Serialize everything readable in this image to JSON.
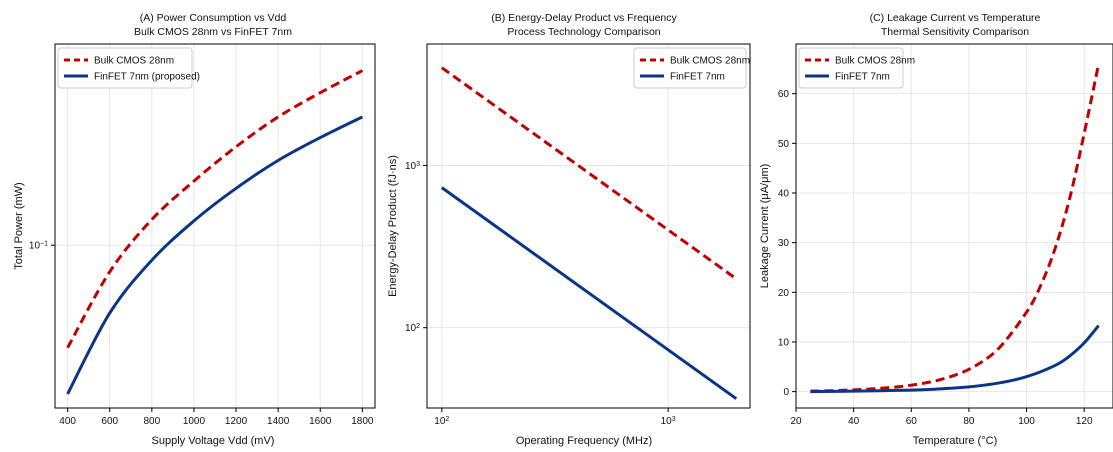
{
  "colors": {
    "bulk": "#c00000",
    "finfet": "#0b3585",
    "grid": "#e3e3e3"
  },
  "chart_data": [
    {
      "type": "line",
      "title": "(A) Power Consumption vs Vdd",
      "subtitle": "Bulk CMOS 28nm vs FinFET 7nm",
      "xlabel": "Supply Voltage Vdd (mV)",
      "ylabel": "Total Power (mW)",
      "xscale": "linear",
      "yscale": "log",
      "xlim": [
        340,
        1860
      ],
      "ylim": [
        0.0172,
        0.88
      ],
      "xticks": [
        {
          "v": 400,
          "label": "400"
        },
        {
          "v": 600,
          "label": "600"
        },
        {
          "v": 800,
          "label": "800"
        },
        {
          "v": 1000,
          "label": "1000"
        },
        {
          "v": 1200,
          "label": "1200"
        },
        {
          "v": 1400,
          "label": "1400"
        },
        {
          "v": 1600,
          "label": "1600"
        },
        {
          "v": 1800,
          "label": "1800"
        }
      ],
      "yticks": [
        {
          "v": 0.1,
          "base": "10",
          "exp": "−1"
        }
      ],
      "grid": true,
      "legend": "top-left",
      "series": [
        {
          "name": "Bulk CMOS 28nm",
          "color_key": "bulk",
          "dash": true,
          "x": [
            400,
            600,
            800,
            1000,
            1200,
            1400,
            1600,
            1800
          ],
          "y": [
            0.033,
            0.075,
            0.132,
            0.2,
            0.29,
            0.4,
            0.52,
            0.66
          ]
        },
        {
          "name": "FinFET 7nm (proposed)",
          "color_key": "finfet",
          "dash": false,
          "x": [
            400,
            600,
            800,
            1000,
            1200,
            1400,
            1600,
            1800
          ],
          "y": [
            0.02,
            0.048,
            0.085,
            0.13,
            0.185,
            0.25,
            0.32,
            0.4
          ]
        }
      ]
    },
    {
      "type": "line",
      "title": "(B) Energy-Delay Product vs Frequency",
      "subtitle": "Process Technology Comparison",
      "xlabel": "Operating Frequency (MHz)",
      "ylabel": "Energy-Delay Product (fJ·ns)",
      "xscale": "log",
      "yscale": "log",
      "xlim": [
        86,
        2300
      ],
      "ylim": [
        32,
        5600
      ],
      "xticks": [
        {
          "v": 100,
          "base": "10",
          "exp": "2"
        },
        {
          "v": 1000,
          "base": "10",
          "exp": "3"
        }
      ],
      "yticks": [
        {
          "v": 100,
          "base": "10",
          "exp": "2"
        },
        {
          "v": 1000,
          "base": "10",
          "exp": "3"
        }
      ],
      "grid": true,
      "legend": "top-right",
      "series": [
        {
          "name": "Bulk CMOS 28nm",
          "color_key": "bulk",
          "dash": true,
          "x": [
            100,
            2000
          ],
          "y": [
            4000,
            200
          ]
        },
        {
          "name": "FinFET 7nm",
          "color_key": "finfet",
          "dash": false,
          "x": [
            100,
            2000
          ],
          "y": [
            730,
            36.5
          ]
        }
      ]
    },
    {
      "type": "line",
      "title": "(C) Leakage Current vs Temperature",
      "subtitle": "Thermal Sensitivity Comparison",
      "xlabel": "Temperature (°C)",
      "ylabel": "Leakage Current (μA/μm)",
      "xscale": "linear",
      "yscale": "linear",
      "xlim": [
        20,
        130
      ],
      "ylim": [
        -3.3,
        70
      ],
      "xticks": [
        {
          "v": 20,
          "label": "20"
        },
        {
          "v": 40,
          "label": "40"
        },
        {
          "v": 60,
          "label": "60"
        },
        {
          "v": 80,
          "label": "80"
        },
        {
          "v": 100,
          "label": "100"
        },
        {
          "v": 120,
          "label": "120"
        }
      ],
      "yticks": [
        {
          "v": 0,
          "label": "0"
        },
        {
          "v": 10,
          "label": "10"
        },
        {
          "v": 20,
          "label": "20"
        },
        {
          "v": 30,
          "label": "30"
        },
        {
          "v": 40,
          "label": "40"
        },
        {
          "v": 50,
          "label": "50"
        },
        {
          "v": 60,
          "label": "60"
        }
      ],
      "grid": true,
      "legend": "top-left",
      "series": [
        {
          "name": "Bulk CMOS 28nm",
          "color_key": "bulk",
          "dash": true,
          "x": [
            25,
            30,
            40,
            50,
            60,
            70,
            80,
            90,
            100,
            105,
            110,
            115,
            120,
            125
          ],
          "y": [
            0.1,
            0.15,
            0.35,
            0.7,
            1.3,
            2.4,
            4.5,
            8.5,
            16,
            21.5,
            29,
            39,
            52,
            66
          ]
        },
        {
          "name": "FinFET 7nm",
          "color_key": "finfet",
          "dash": false,
          "x": [
            25,
            40,
            60,
            70,
            80,
            90,
            100,
            110,
            115,
            120,
            125
          ],
          "y": [
            0.0,
            0.1,
            0.3,
            0.55,
            0.95,
            1.7,
            3.0,
            5.3,
            7.2,
            9.8,
            13.3
          ]
        }
      ]
    }
  ]
}
